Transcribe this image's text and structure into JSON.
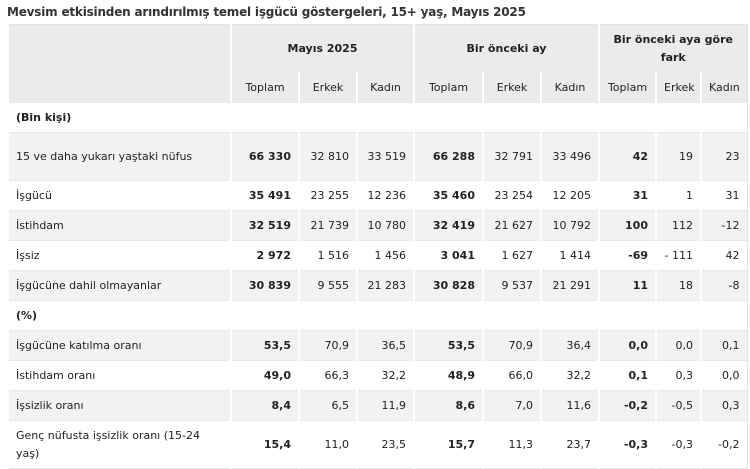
{
  "title": "Mevsim etkisinden arındırılmış temel işgücü göstergeleri, 15+ yaş, Mayıs 2025",
  "groups": [
    "Mayıs 2025",
    "Bir önceki ay",
    "Bir önceki aya göre fark"
  ],
  "subheaders": [
    "Toplam",
    "Erkek",
    "Kadın",
    "Toplam",
    "Erkek",
    "Kadın",
    "Toplam",
    "Erkek",
    "Kadın"
  ],
  "sections": [
    {
      "label": "(Bin kişi)",
      "rows": [
        {
          "label": "15 ve daha yukarı yaştaki nüfus",
          "values": [
            "66 330",
            "32 810",
            "33 519",
            "66 288",
            "32 791",
            "33 496",
            "42",
            "19",
            "23"
          ]
        },
        {
          "label": "İşgücü",
          "values": [
            "35 491",
            "23 255",
            "12 236",
            "35 460",
            "23 254",
            "12 205",
            "31",
            "1",
            "31"
          ]
        },
        {
          "label": "İstihdam",
          "values": [
            "32 519",
            "21 739",
            "10 780",
            "32 419",
            "21 627",
            "10 792",
            "100",
            "112",
            "-12"
          ]
        },
        {
          "label": "İşsiz",
          "values": [
            "2 972",
            "1 516",
            "1 456",
            "3 041",
            "1 627",
            "1 414",
            "-69",
            "- 111",
            "42"
          ]
        },
        {
          "label": "İşgücüne dahil olmayanlar",
          "values": [
            "30 839",
            "9 555",
            "21 283",
            "30 828",
            "9 537",
            "21 291",
            "11",
            "18",
            "-8"
          ]
        }
      ]
    },
    {
      "label": "(%)",
      "rows": [
        {
          "label": "İşgücüne katılma oranı",
          "values": [
            "53,5",
            "70,9",
            "36,5",
            "53,5",
            "70,9",
            "36,4",
            "0,0",
            "0,0",
            "0,1"
          ]
        },
        {
          "label": "İstihdam oranı",
          "values": [
            "49,0",
            "66,3",
            "32,2",
            "48,9",
            "66,0",
            "32,2",
            "0,1",
            "0,3",
            "0,0"
          ]
        },
        {
          "label": "İşsizlik oranı",
          "values": [
            "8,4",
            "6,5",
            "11,9",
            "8,6",
            "7,0",
            "11,6",
            "-0,2",
            "-0,5",
            "0,3"
          ]
        },
        {
          "label": "Genç nüfusta işsizlik oranı (15-24 yaş)",
          "values": [
            "15,4",
            "11,0",
            "23,5",
            "15,7",
            "11,3",
            "23,7",
            "-0,3",
            "-0,3",
            "-0,2"
          ]
        }
      ]
    }
  ]
}
